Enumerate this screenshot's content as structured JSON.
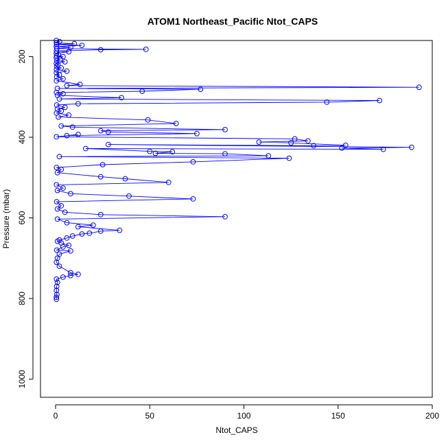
{
  "chart_data": {
    "type": "line",
    "title": "ATOM1 Northeast_Pacific Ntot_CAPS",
    "xlabel": "Ntot_CAPS",
    "ylabel": "Pressure (mbar)",
    "xlim": [
      -8,
      200
    ],
    "ylim": [
      1045,
      160
    ],
    "y_inverted": true,
    "x_ticks": [
      0,
      50,
      100,
      150,
      200
    ],
    "y_ticks": [
      200,
      400,
      600,
      800,
      1000
    ],
    "grid": false,
    "legend": "none",
    "series_color": "#0000ff",
    "marker": "open-circle",
    "series": [
      {
        "name": "",
        "points": [
          [
            0.4,
            160
          ],
          [
            2.1,
            163
          ],
          [
            0.5,
            166
          ],
          [
            10,
            168
          ],
          [
            0.6,
            170
          ],
          [
            14,
            172
          ],
          [
            0.4,
            175
          ],
          [
            8,
            177
          ],
          [
            0.7,
            180
          ],
          [
            48,
            182
          ],
          [
            24,
            183
          ],
          [
            0.5,
            186
          ],
          [
            7,
            188
          ],
          [
            0.4,
            192
          ],
          [
            1.5,
            195
          ],
          [
            0.6,
            198
          ],
          [
            4,
            200
          ],
          [
            0.4,
            203
          ],
          [
            2.5,
            206
          ],
          [
            0.6,
            210
          ],
          [
            5,
            213
          ],
          [
            0.4,
            217
          ],
          [
            1.2,
            220
          ],
          [
            0.6,
            224
          ],
          [
            3,
            228
          ],
          [
            0.5,
            232
          ],
          [
            6,
            236
          ],
          [
            0.4,
            240
          ],
          [
            2,
            245
          ],
          [
            0.6,
            250
          ],
          [
            4,
            255
          ],
          [
            0.5,
            260
          ],
          [
            13,
            269
          ],
          [
            6,
            272
          ],
          [
            193,
            276
          ],
          [
            1,
            279
          ],
          [
            77,
            281
          ],
          [
            46,
            286
          ],
          [
            0.5,
            289
          ],
          [
            4,
            292
          ],
          [
            1,
            296
          ],
          [
            35,
            302
          ],
          [
            2,
            305
          ],
          [
            172,
            309
          ],
          [
            144,
            313
          ],
          [
            12,
            317
          ],
          [
            0.6,
            320
          ],
          [
            5,
            326
          ],
          [
            1,
            330
          ],
          [
            3,
            335
          ],
          [
            0.5,
            340
          ],
          [
            7,
            345
          ],
          [
            1.5,
            350
          ],
          [
            49,
            357
          ],
          [
            64,
            366
          ],
          [
            3,
            372
          ],
          [
            9,
            375
          ],
          [
            90,
            381
          ],
          [
            24,
            384
          ],
          [
            28,
            387
          ],
          [
            75,
            391
          ],
          [
            6,
            396
          ],
          [
            12,
            393
          ],
          [
            0.5,
            399
          ],
          [
            127,
            404
          ],
          [
            134,
            409
          ],
          [
            108,
            412
          ],
          [
            125,
            414
          ],
          [
            154,
            420
          ],
          [
            137,
            421
          ],
          [
            28,
            418
          ],
          [
            189,
            425
          ],
          [
            152,
            427
          ],
          [
            174,
            430
          ],
          [
            16,
            428
          ],
          [
            50,
            435
          ],
          [
            62,
            436
          ],
          [
            53,
            440
          ],
          [
            90,
            441
          ],
          [
            113,
            446
          ],
          [
            2,
            448
          ],
          [
            124,
            452
          ],
          [
            73,
            461
          ],
          [
            25,
            468
          ],
          [
            0.5,
            475
          ],
          [
            3,
            480
          ],
          [
            1,
            488
          ],
          [
            24,
            498
          ],
          [
            37,
            503
          ],
          [
            60,
            512
          ],
          [
            0.5,
            518
          ],
          [
            4,
            526
          ],
          [
            1,
            532
          ],
          [
            8,
            540
          ],
          [
            39,
            546
          ],
          [
            73,
            553
          ],
          [
            0.6,
            560
          ],
          [
            3,
            570
          ],
          [
            1,
            578
          ],
          [
            5,
            586
          ],
          [
            24,
            592
          ],
          [
            90,
            597
          ],
          [
            1,
            603
          ],
          [
            6,
            612
          ],
          [
            20,
            618
          ],
          [
            12,
            622
          ],
          [
            34,
            631
          ],
          [
            24,
            633
          ],
          [
            18,
            638
          ],
          [
            14,
            640
          ],
          [
            9,
            645
          ],
          [
            6,
            650
          ],
          [
            2,
            655
          ],
          [
            1,
            658
          ],
          [
            3,
            662
          ],
          [
            7,
            668
          ],
          [
            4,
            672
          ],
          [
            0.6,
            680
          ],
          [
            8,
            682
          ],
          [
            2,
            690
          ],
          [
            1,
            700
          ],
          [
            0.5,
            710
          ],
          [
            2,
            720
          ],
          [
            8,
            736
          ],
          [
            12,
            740
          ],
          [
            8,
            743
          ],
          [
            4,
            747
          ],
          [
            0.5,
            752
          ],
          [
            1,
            760
          ],
          [
            0.6,
            770
          ],
          [
            0.5,
            780
          ],
          [
            0.7,
            790
          ],
          [
            0.4,
            797
          ],
          [
            0.5,
            802
          ]
        ]
      }
    ]
  }
}
